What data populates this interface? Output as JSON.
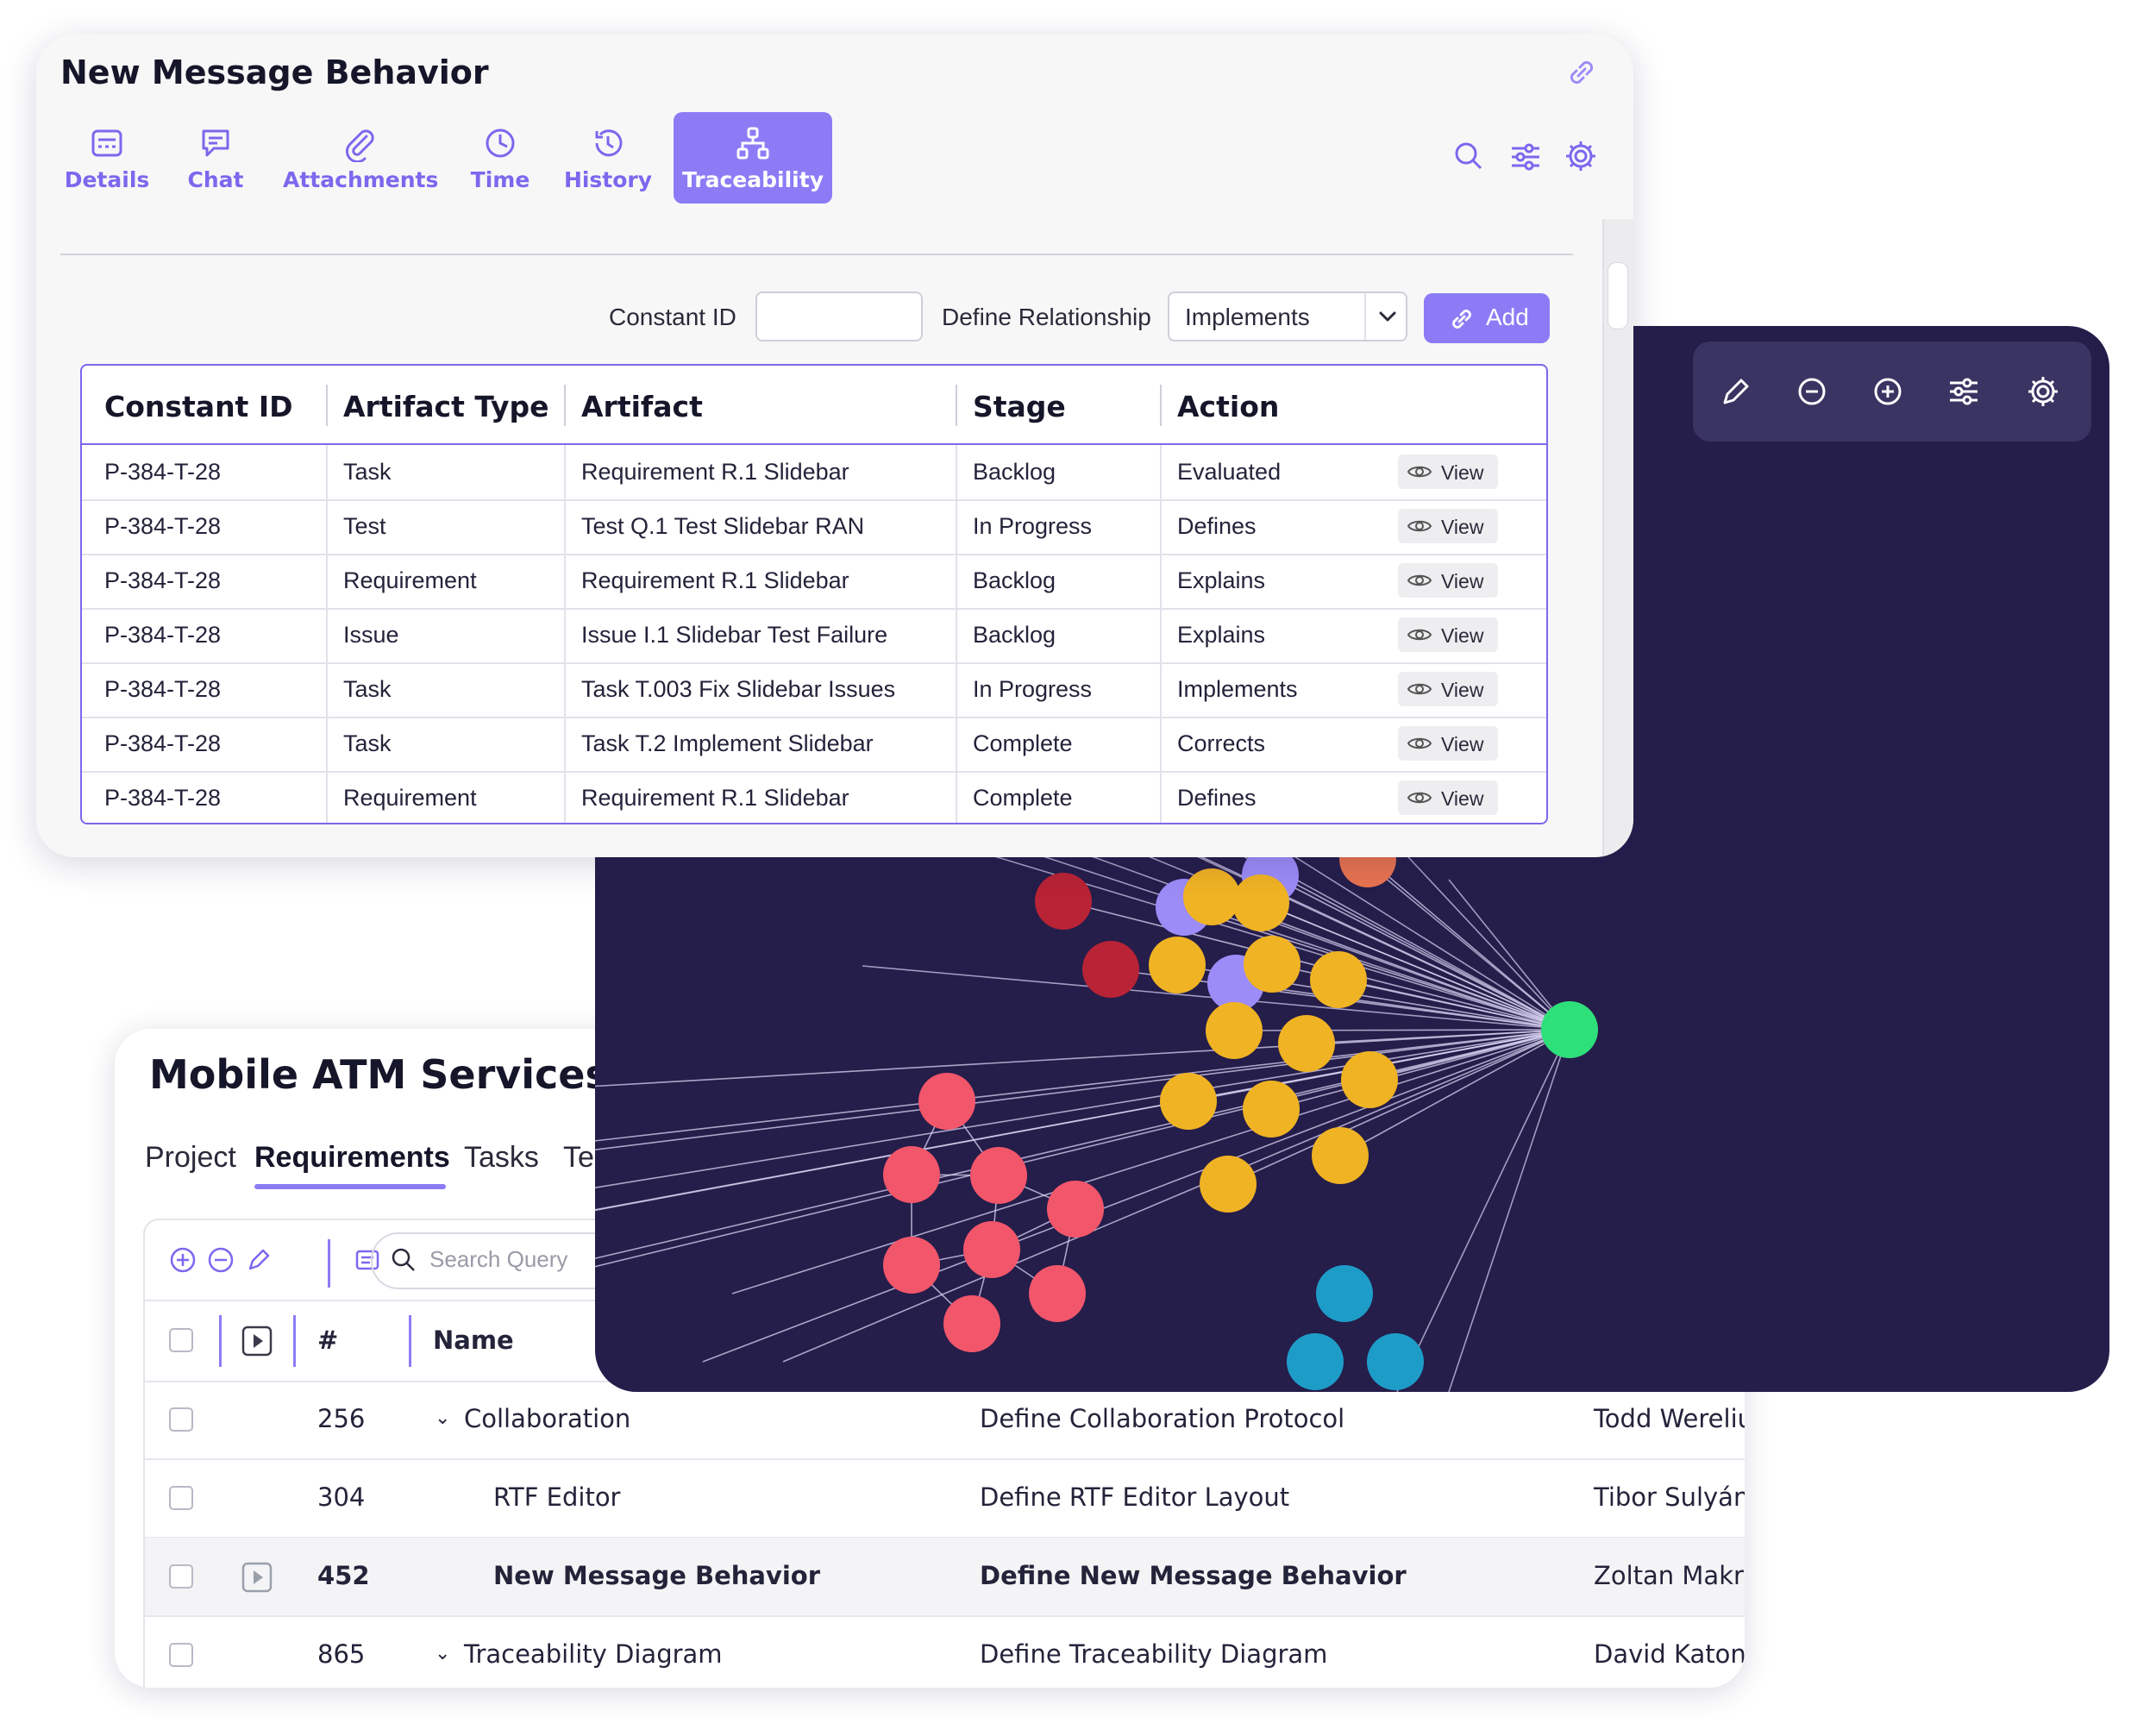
{
  "atm": {
    "title": "Mobile ATM Services",
    "tabs": [
      "Project",
      "Requirements",
      "Tasks",
      "Te"
    ],
    "search_placeholder": "Search Query",
    "columns": {
      "num": "#",
      "name": "Name"
    },
    "rows": [
      {
        "num": "256",
        "name": "Collaboration",
        "desc": "Define Collaboration Protocol",
        "owner": "Todd Werelius"
      },
      {
        "num": "304",
        "name": "RTF Editor",
        "desc": "Define RTF Editor Layout",
        "owner": "Tibor Sulyán"
      },
      {
        "num": "452",
        "name": "New Message Behavior",
        "desc": "Define New Message Behavior",
        "owner": "Zoltan Makra"
      },
      {
        "num": "865",
        "name": "Traceability Diagram",
        "desc": "Define Traceability Diagram",
        "owner": "David Katona"
      }
    ]
  },
  "graph": {
    "toolbar_icons": [
      "pencil-icon",
      "zoom-out-icon",
      "zoom-in-icon",
      "sliders-icon",
      "gear-icon"
    ],
    "colors": {
      "background": "#251d4a",
      "hub": "#2ee07a",
      "purple": "#9b8cf8",
      "orange": "#e8734f",
      "dark_red": "#b82335",
      "yellow": "#f0b323",
      "coral": "#f2566a",
      "blue": "#1e9cc8"
    }
  },
  "nmb": {
    "title": "New Message Behavior",
    "tabs": [
      "Details",
      "Chat",
      "Attachments",
      "Time",
      "History",
      "Traceability"
    ],
    "active_tab": "Traceability",
    "form": {
      "constant_label": "Constant ID",
      "constant_value": "",
      "relationship_label": "Define Relationship",
      "relationship_value": "Implements",
      "add_label": "Add"
    },
    "table": {
      "headers": [
        "Constant ID",
        "Artifact Type",
        "Artifact",
        "Stage",
        "Action"
      ],
      "view_label": "View",
      "rows": [
        [
          "P-384-T-28",
          "Task",
          "Requirement R.1 Slidebar",
          "Backlog",
          "Evaluated"
        ],
        [
          "P-384-T-28",
          "Test",
          "Test Q.1 Test Slidebar RAN",
          "In Progress",
          "Defines"
        ],
        [
          "P-384-T-28",
          "Requirement",
          "Requirement R.1 Slidebar",
          "Backlog",
          "Explains"
        ],
        [
          "P-384-T-28",
          "Issue",
          "Issue I.1 Slidebar Test Failure",
          "Backlog",
          "Explains"
        ],
        [
          "P-384-T-28",
          "Task",
          "Task T.003 Fix Slidebar Issues",
          "In Progress",
          "Implements"
        ],
        [
          "P-384-T-28",
          "Task",
          "Task T.2 Implement Slidebar",
          "Complete",
          "Corrects"
        ],
        [
          "P-384-T-28",
          "Requirement",
          "Requirement R.1 Slidebar",
          "Complete",
          "Defines"
        ]
      ]
    },
    "accent": "#8b7cf6"
  }
}
